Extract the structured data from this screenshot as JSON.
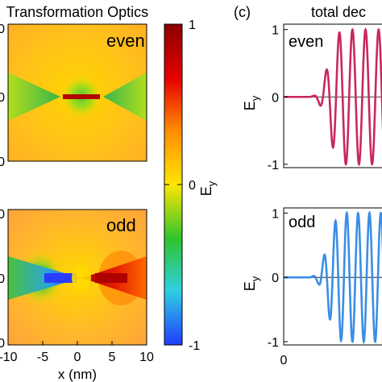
{
  "figure": {
    "left_title": "Transformation Optics",
    "right_label": "(c)",
    "right_title": "total dec"
  },
  "chart_data": [
    {
      "type": "heatmap",
      "panel": "left-top",
      "label": "even",
      "y_tick_labels": [
        "0",
        "0",
        "0"
      ],
      "x_tick_labels": []
    },
    {
      "type": "heatmap",
      "panel": "left-bottom",
      "label": "odd",
      "y_tick_labels": [
        "0",
        "0",
        "0"
      ],
      "x_tick_labels": [
        "-10",
        "-5",
        "0",
        "5",
        "10"
      ],
      "xlabel": "x (nm)",
      "xlim": [
        -10,
        10
      ]
    },
    {
      "type": "colorbar",
      "label": "E",
      "label_sub": "y",
      "range": [
        -1,
        1
      ],
      "tick_labels": [
        "1",
        "0",
        "-1"
      ],
      "stops": [
        "#1e3cff",
        "#2fd0e0",
        "#2ec42e",
        "#ffe600",
        "#ff8a00",
        "#e60000",
        "#8c0000"
      ]
    },
    {
      "type": "line",
      "panel": "right-top",
      "label": "even",
      "ylabel": "E",
      "ylabel_sub": "y",
      "ylim": [
        -1.05,
        1.08
      ],
      "y_tick_labels": [
        "1",
        "0",
        "-1"
      ],
      "x_tick_labels": [],
      "xlim": [
        0,
        1.2
      ],
      "color": "#c9285c",
      "series": [
        {
          "x": [
            0,
            0.3,
            0.35,
            0.4,
            0.45,
            0.5,
            0.55,
            0.6,
            0.65,
            0.7,
            0.75,
            0.8,
            0.85,
            0.9,
            0.95,
            1.0
          ],
          "amp": [
            0,
            0,
            0.02,
            0.08,
            0.22,
            0.45,
            0.7,
            0.88,
            0.98,
            1.0,
            1.0,
            1.0,
            1.0,
            1.0,
            1.0,
            1.0
          ],
          "period": 0.15
        }
      ]
    },
    {
      "type": "line",
      "panel": "right-bottom",
      "label": "odd",
      "ylabel": "E",
      "ylabel_sub": "y",
      "ylim": [
        -1.05,
        1.08
      ],
      "y_tick_labels": [
        "1",
        "0",
        "-1"
      ],
      "x_tick_labels": [
        "0"
      ],
      "xlim": [
        0,
        1.2
      ],
      "color": "#3a8ee6",
      "series": [
        {
          "x": [
            0,
            0.3,
            0.35,
            0.4,
            0.45,
            0.5,
            0.55,
            0.6,
            0.65,
            0.7,
            0.75,
            0.8,
            0.85,
            0.9,
            0.95,
            1.0
          ],
          "amp": [
            0,
            0,
            0.03,
            0.1,
            0.28,
            0.52,
            0.75,
            0.9,
            0.98,
            1.0,
            1.0,
            1.0,
            1.0,
            1.0,
            1.0,
            1.0
          ],
          "period": 0.13
        }
      ]
    }
  ]
}
